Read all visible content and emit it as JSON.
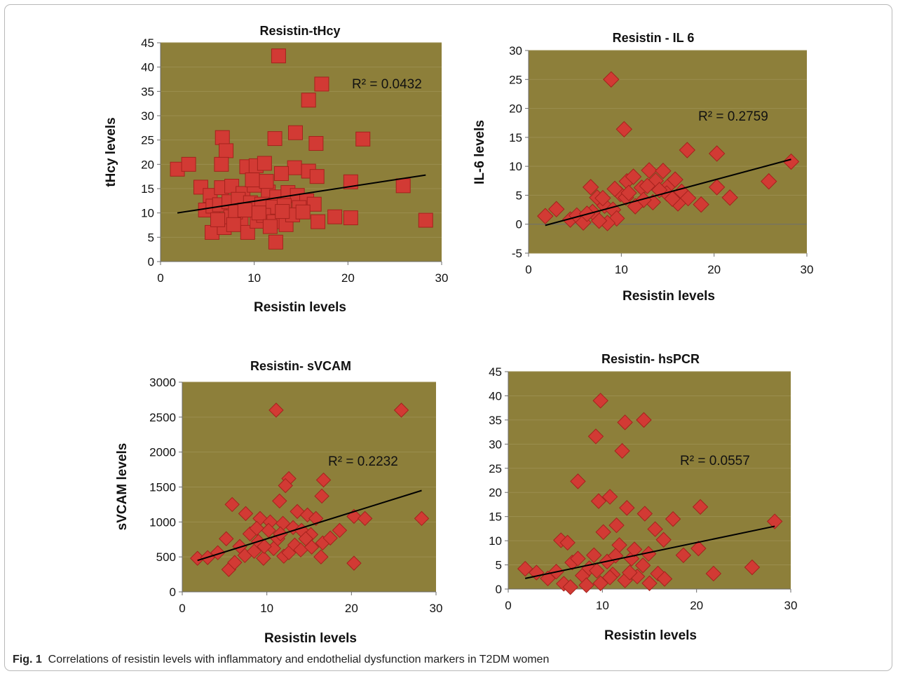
{
  "caption": {
    "label": "Fig. 1",
    "text": "Correlations of resistin levels with inflammatory and endothelial dysfunction markers in T2DM women"
  },
  "colors": {
    "plot_bg": "#8d7f3a",
    "marker": "#d23a34",
    "marker_edge": "#a5221d",
    "gridline": "#9b8e4f",
    "trendline": "#000000"
  },
  "chart_data": [
    {
      "type": "scatter",
      "marker": "square",
      "title": "Resistin-tHcy",
      "xlabel": "Resistin levels",
      "ylabel": "tHcy levels",
      "xlim": [
        0,
        30
      ],
      "ylim": [
        0,
        45
      ],
      "xticks": [
        0,
        10,
        20,
        30
      ],
      "yticks": [
        0,
        5,
        10,
        15,
        20,
        25,
        30,
        35,
        40,
        45
      ],
      "grid": true,
      "r2_label": "R² = 0.0432",
      "trendline": [
        [
          1.8,
          10.0
        ],
        [
          28.3,
          17.8
        ]
      ],
      "points": [
        [
          1.8,
          19
        ],
        [
          3,
          20
        ],
        [
          12.6,
          42.3
        ],
        [
          17.2,
          36.5
        ],
        [
          15.8,
          33.2
        ],
        [
          14.4,
          26.5
        ],
        [
          6.6,
          25.5
        ],
        [
          12.2,
          25.3
        ],
        [
          16.6,
          24.3
        ],
        [
          21.6,
          25.2
        ],
        [
          7,
          22.8
        ],
        [
          6.5,
          20
        ],
        [
          9.2,
          19.5
        ],
        [
          10.2,
          19.7
        ],
        [
          11.1,
          20.2
        ],
        [
          14.3,
          19.3
        ],
        [
          15.8,
          18.6
        ],
        [
          16.7,
          17.5
        ],
        [
          4.3,
          15.3
        ],
        [
          5.3,
          13.6
        ],
        [
          6.5,
          15.2
        ],
        [
          7.6,
          15.5
        ],
        [
          8.8,
          14
        ],
        [
          10,
          15.7
        ],
        [
          11.5,
          14.3
        ],
        [
          12.4,
          13.3
        ],
        [
          13.6,
          14.2
        ],
        [
          14.6,
          13.6
        ],
        [
          15.6,
          12.5
        ],
        [
          16.4,
          11.8
        ],
        [
          12.9,
          18.1
        ],
        [
          11.3,
          16.5
        ],
        [
          9.8,
          16.8
        ],
        [
          20.3,
          16.4
        ],
        [
          25.9,
          15.6
        ],
        [
          28.3,
          8.5
        ],
        [
          20.3,
          9
        ],
        [
          18.6,
          9.2
        ],
        [
          16.8,
          8.2
        ],
        [
          4.8,
          10.6
        ],
        [
          5.6,
          11.4
        ],
        [
          6.3,
          11.7
        ],
        [
          7.3,
          12.3
        ],
        [
          8.3,
          12.8
        ],
        [
          9.6,
          12.1
        ],
        [
          10.8,
          11.8
        ],
        [
          12,
          11.2
        ],
        [
          13.2,
          11.5
        ],
        [
          14.8,
          11.1
        ],
        [
          5.5,
          6
        ],
        [
          6.8,
          7
        ],
        [
          7.5,
          9.2
        ],
        [
          8.6,
          8.8
        ],
        [
          9.3,
          6
        ],
        [
          10.3,
          8.3
        ],
        [
          11,
          9.5
        ],
        [
          12.1,
          8.2
        ],
        [
          13.4,
          7.6
        ],
        [
          14.1,
          9.6
        ],
        [
          12.3,
          4
        ],
        [
          6.1,
          8.6
        ],
        [
          8,
          10.2
        ],
        [
          10.5,
          10
        ],
        [
          11.7,
          7.2
        ],
        [
          13,
          10.3
        ],
        [
          15.2,
          10.2
        ],
        [
          7.8,
          7.6
        ],
        [
          9,
          10.6
        ]
      ]
    },
    {
      "type": "scatter",
      "marker": "diamond",
      "title": "Resistin - IL 6",
      "xlabel": "Resistin levels",
      "ylabel": "IL-6  levels",
      "xlim": [
        0,
        30
      ],
      "ylim": [
        -5,
        30
      ],
      "xticks": [
        0,
        10,
        20,
        30
      ],
      "yticks": [
        -5,
        0,
        5,
        10,
        15,
        20,
        25,
        30
      ],
      "grid": true,
      "r2_label": "R² = 0.2759",
      "trendline": [
        [
          1.8,
          -0.2
        ],
        [
          28.3,
          11.2
        ]
      ],
      "points": [
        [
          8.9,
          25
        ],
        [
          10.3,
          16.4
        ],
        [
          17.1,
          12.8
        ],
        [
          20.3,
          12.2
        ],
        [
          28.3,
          10.8
        ],
        [
          25.9,
          7.4
        ],
        [
          21.7,
          4.6
        ],
        [
          18.6,
          3.4
        ],
        [
          20.3,
          6.4
        ],
        [
          1.8,
          1.4
        ],
        [
          3,
          2.6
        ],
        [
          4.5,
          0.8
        ],
        [
          5.2,
          1.5
        ],
        [
          5.9,
          0.3
        ],
        [
          6.7,
          6.4
        ],
        [
          7.4,
          4.6
        ],
        [
          8.2,
          3.2
        ],
        [
          9.1,
          2.5
        ],
        [
          9.9,
          5.2
        ],
        [
          10.6,
          7.4
        ],
        [
          11.3,
          8.2
        ],
        [
          12.2,
          6.3
        ],
        [
          13,
          9.3
        ],
        [
          13.7,
          7.5
        ],
        [
          14.5,
          9.2
        ],
        [
          15.2,
          6.8
        ],
        [
          15.8,
          7.7
        ],
        [
          16.5,
          5.6
        ],
        [
          17.2,
          4.5
        ],
        [
          16.1,
          3.6
        ],
        [
          14.9,
          5.3
        ],
        [
          13.4,
          3.8
        ],
        [
          12.4,
          4.2
        ],
        [
          11.5,
          3.1
        ],
        [
          10.5,
          4.6
        ],
        [
          9.5,
          1
        ],
        [
          8.5,
          0.2
        ],
        [
          7.6,
          0.6
        ],
        [
          6.9,
          2.1
        ],
        [
          6.3,
          1.8
        ],
        [
          8,
          4.5
        ],
        [
          9.3,
          6.1
        ],
        [
          10.8,
          5.4
        ],
        [
          12.8,
          6.6
        ],
        [
          14.1,
          5.9
        ],
        [
          15.5,
          4.4
        ]
      ]
    },
    {
      "type": "scatter",
      "marker": "diamond",
      "title": "Resistin- sVCAM",
      "xlabel": "Resistin levels",
      "ylabel": "sVCAM levels",
      "xlim": [
        0,
        30
      ],
      "ylim": [
        0,
        3000
      ],
      "xticks": [
        0,
        10,
        20,
        30
      ],
      "yticks": [
        0,
        500,
        1000,
        1500,
        2000,
        2500,
        3000
      ],
      "grid": true,
      "r2_label": "R² = 0.2232",
      "trendline": [
        [
          1.8,
          450
        ],
        [
          28.3,
          1450
        ]
      ],
      "points": [
        [
          11.1,
          2600
        ],
        [
          25.9,
          2600
        ],
        [
          12.6,
          1620
        ],
        [
          16.7,
          1600
        ],
        [
          12.2,
          1520
        ],
        [
          16.5,
          1370
        ],
        [
          11.5,
          1300
        ],
        [
          5.9,
          1250
        ],
        [
          13.6,
          1150
        ],
        [
          14.8,
          1100
        ],
        [
          15.8,
          1050
        ],
        [
          20.3,
          1080
        ],
        [
          21.6,
          1050
        ],
        [
          28.3,
          1050
        ],
        [
          18.6,
          880
        ],
        [
          20.3,
          410
        ],
        [
          7.5,
          1120
        ],
        [
          9.2,
          1050
        ],
        [
          10.4,
          1000
        ],
        [
          11.9,
          980
        ],
        [
          13.1,
          920
        ],
        [
          14.1,
          880
        ],
        [
          15.2,
          820
        ],
        [
          16.6,
          700
        ],
        [
          17.5,
          770
        ],
        [
          16.4,
          500
        ],
        [
          1.8,
          480
        ],
        [
          3,
          490
        ],
        [
          4.2,
          560
        ],
        [
          5.2,
          760
        ],
        [
          5.5,
          320
        ],
        [
          6.2,
          420
        ],
        [
          6.8,
          650
        ],
        [
          7.4,
          520
        ],
        [
          8,
          830
        ],
        [
          8.5,
          580
        ],
        [
          9,
          720
        ],
        [
          9.6,
          480
        ],
        [
          10.2,
          880
        ],
        [
          10.8,
          620
        ],
        [
          11.3,
          760
        ],
        [
          12,
          510
        ],
        [
          12.6,
          560
        ],
        [
          13.3,
          670
        ],
        [
          14,
          600
        ],
        [
          14.6,
          760
        ],
        [
          15.3,
          640
        ],
        [
          9.7,
          650
        ],
        [
          11.6,
          830
        ],
        [
          8.8,
          910
        ]
      ]
    },
    {
      "type": "scatter",
      "marker": "diamond",
      "title": "Resistin- hsPCR",
      "xlabel": "Resistin levels",
      "ylabel": "",
      "xlim": [
        0,
        30
      ],
      "ylim": [
        0,
        45
      ],
      "xticks": [
        0,
        10,
        20,
        30
      ],
      "yticks": [
        0,
        5,
        10,
        15,
        20,
        25,
        30,
        35,
        40,
        45
      ],
      "grid": true,
      "r2_label": "R² = 0.0557",
      "trendline": [
        [
          1.8,
          2.2
        ],
        [
          28.3,
          13.0
        ]
      ],
      "points": [
        [
          9.8,
          39
        ],
        [
          12.4,
          34.5
        ],
        [
          14.4,
          35
        ],
        [
          9.3,
          31.6
        ],
        [
          12.1,
          28.6
        ],
        [
          7.4,
          22.3
        ],
        [
          9.6,
          18.2
        ],
        [
          10.8,
          19.1
        ],
        [
          12.6,
          16.8
        ],
        [
          20.4,
          17
        ],
        [
          28.3,
          14
        ],
        [
          25.9,
          4.5
        ],
        [
          21.8,
          3.2
        ],
        [
          18.6,
          7
        ],
        [
          20.2,
          8.4
        ],
        [
          17.5,
          14.5
        ],
        [
          16.5,
          10.2
        ],
        [
          15.6,
          12.4
        ],
        [
          14.5,
          15.6
        ],
        [
          11.5,
          13.2
        ],
        [
          10.1,
          11.8
        ],
        [
          1.8,
          4.2
        ],
        [
          3,
          3.4
        ],
        [
          4.2,
          2.2
        ],
        [
          5.1,
          3.6
        ],
        [
          5.6,
          10.1
        ],
        [
          6.3,
          9.6
        ],
        [
          6.8,
          5.5
        ],
        [
          7.4,
          6.3
        ],
        [
          7.9,
          2.8
        ],
        [
          8.6,
          4.3
        ],
        [
          9.1,
          7
        ],
        [
          9.8,
          1.2
        ],
        [
          10.5,
          5.7
        ],
        [
          11.1,
          3
        ],
        [
          11.8,
          9.1
        ],
        [
          12.4,
          1.8
        ],
        [
          13.1,
          6.3
        ],
        [
          13.7,
          2.6
        ],
        [
          14.3,
          4.9
        ],
        [
          15,
          1.2
        ],
        [
          15.9,
          3.2
        ],
        [
          16.6,
          2.1
        ],
        [
          8.3,
          0.8
        ],
        [
          10.8,
          2.4
        ],
        [
          13.4,
          8.2
        ],
        [
          5.9,
          1.1
        ],
        [
          6.6,
          0.4
        ],
        [
          12.9,
          3.4
        ],
        [
          11.4,
          6.9
        ],
        [
          9.4,
          3.8
        ],
        [
          14.9,
          7.3
        ]
      ]
    }
  ]
}
